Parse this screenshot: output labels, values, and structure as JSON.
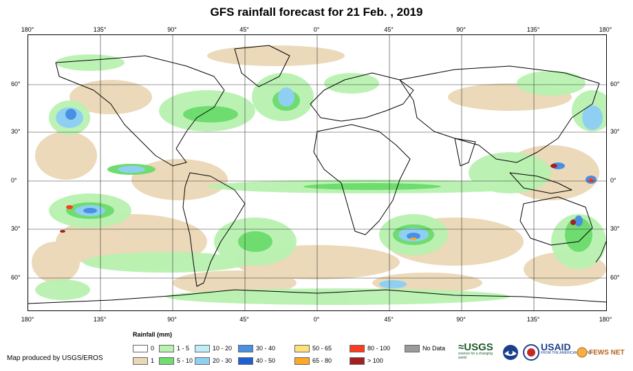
{
  "title": "GFS rainfall forecast for 21 Feb. , 2019",
  "lon_labels": [
    "180°",
    "135°",
    "90°",
    "45°",
    "0°",
    "45°",
    "90°",
    "135°",
    "180°"
  ],
  "lat_labels": [
    "60°",
    "30°",
    "0°",
    "30°",
    "60°"
  ],
  "legend_title": "Rainfall (mm)",
  "legend": [
    {
      "label": "0",
      "color": "#ffffff"
    },
    {
      "label": "1",
      "color": "#ead7b6"
    },
    {
      "label": "1 - 5",
      "color": "#b8f2b0"
    },
    {
      "label": "5 - 10",
      "color": "#6fdc6f"
    },
    {
      "label": "10 - 20",
      "color": "#bfeefa"
    },
    {
      "label": "20 - 30",
      "color": "#8fd0f2"
    },
    {
      "label": "30 - 40",
      "color": "#4a90e2"
    },
    {
      "label": "40 - 50",
      "color": "#1f5fd6"
    },
    {
      "label": "50 - 65",
      "color": "#ffe07a"
    },
    {
      "label": "65 - 80",
      "color": "#ffa726"
    },
    {
      "label": "80 - 100",
      "color": "#ff3b1f"
    },
    {
      "label": "> 100",
      "color": "#a32020"
    },
    {
      "label": "No Data",
      "color": "#9b9b9b"
    }
  ],
  "credit": "Map produced by USGS/EROS",
  "logos": {
    "usgs": "≈USGS",
    "usgs_tagline": "science for a changing world",
    "usaid": "USAID",
    "usaid_tagline": "FROM THE AMERICAN PEOPLE",
    "fews": "FEWS NET"
  }
}
